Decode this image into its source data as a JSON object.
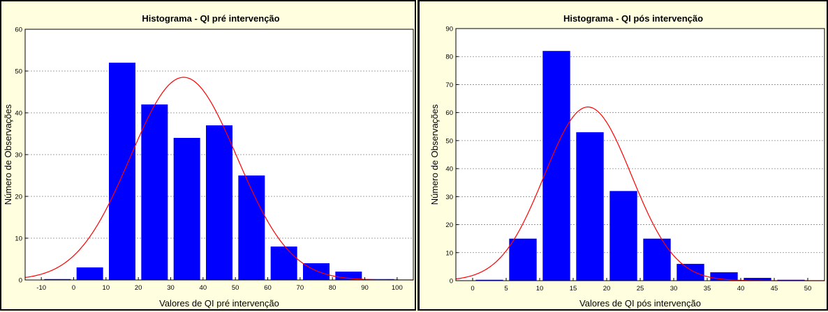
{
  "chart_data": [
    {
      "type": "bar",
      "title": "Histograma - QI pré intervenção",
      "xlabel": "Valores de QI pré intervenção",
      "ylabel": "Número de Observações",
      "xlim": [
        -15,
        105
      ],
      "ylim": [
        0,
        60
      ],
      "x_ticks": [
        -10,
        0,
        10,
        20,
        30,
        40,
        50,
        60,
        70,
        80,
        90,
        100
      ],
      "y_ticks": [
        0,
        10,
        20,
        30,
        40,
        50,
        60
      ],
      "bin_width": 10,
      "bins": [
        [
          -10,
          0
        ],
        [
          0,
          10
        ],
        [
          10,
          20
        ],
        [
          20,
          30
        ],
        [
          30,
          40
        ],
        [
          40,
          50
        ],
        [
          50,
          60
        ],
        [
          60,
          70
        ],
        [
          70,
          80
        ],
        [
          80,
          90
        ],
        [
          90,
          100
        ]
      ],
      "values": [
        0,
        3,
        52,
        42,
        34,
        37,
        25,
        8,
        4,
        2,
        0
      ],
      "normal_curve": {
        "mean": 34,
        "sd": 16.5,
        "peak": 48.5
      },
      "grid": true,
      "colors": {
        "bar": "#0000ff",
        "curve": "#ff0000",
        "plot_bg": "#ffffff",
        "panel_bg": "#ffffe0"
      }
    },
    {
      "type": "bar",
      "title": "Histograma - QI pós intervenção",
      "xlabel": "Valores de QI pós intervenção",
      "ylabel": "Número de Observações",
      "xlim": [
        -2.5,
        52.5
      ],
      "ylim": [
        0,
        90
      ],
      "x_ticks": [
        0,
        5,
        10,
        15,
        20,
        25,
        30,
        35,
        40,
        45,
        50
      ],
      "y_ticks": [
        0,
        10,
        20,
        30,
        40,
        50,
        60,
        70,
        80,
        90
      ],
      "bin_width": 5,
      "bins": [
        [
          0,
          5
        ],
        [
          5,
          10
        ],
        [
          10,
          15
        ],
        [
          15,
          20
        ],
        [
          20,
          25
        ],
        [
          25,
          30
        ],
        [
          30,
          35
        ],
        [
          35,
          40
        ],
        [
          40,
          45
        ],
        [
          45,
          50
        ]
      ],
      "values": [
        0,
        15,
        82,
        53,
        32,
        15,
        6,
        3,
        1,
        0
      ],
      "normal_curve": {
        "mean": 17.2,
        "sd": 6.5,
        "peak": 62
      },
      "grid": true,
      "colors": {
        "bar": "#0000ff",
        "curve": "#ff0000",
        "plot_bg": "#ffffff",
        "panel_bg": "#ffffe0"
      }
    }
  ]
}
